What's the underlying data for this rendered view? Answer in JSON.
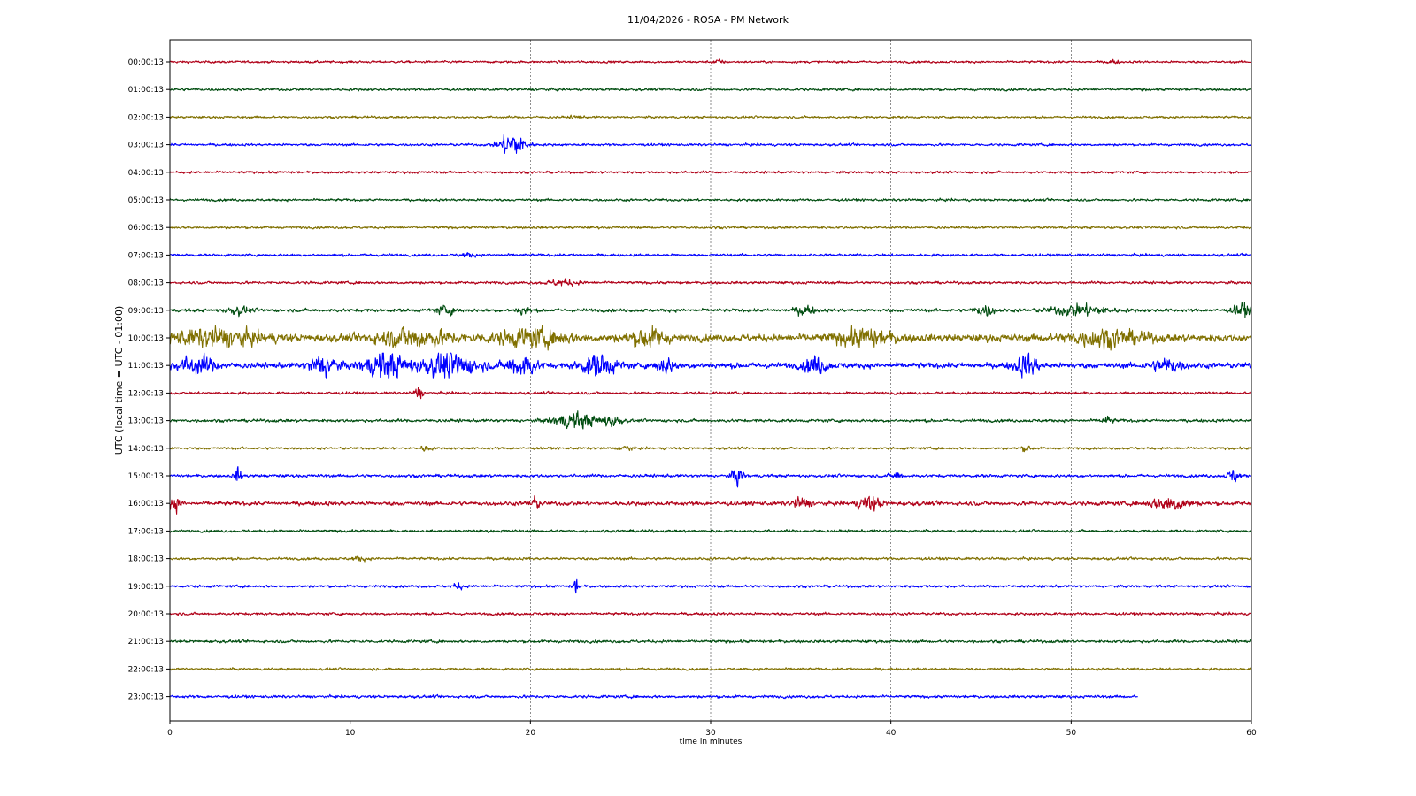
{
  "chart_data": {
    "type": "line",
    "title": "11/04/2026 - ROSA - PM Network",
    "xlabel": "time in minutes",
    "ylabel": "UTC (local time = UTC - 01:00)",
    "xlim": [
      0,
      60
    ],
    "x_ticks": [
      "0",
      "10",
      "20",
      "30",
      "40",
      "50",
      "60"
    ],
    "grid": "vertical dashed at x ticks",
    "color_cycle": [
      "#b00018",
      "#004d10",
      "#807000",
      "#0000ff"
    ],
    "series": [
      {
        "name": "00:00:13",
        "end": 60,
        "amp": 1.2,
        "events": [
          {
            "t": 30.4,
            "a": 2.2,
            "w": 0.3
          },
          {
            "t": 52.3,
            "a": 1.8,
            "w": 0.3
          }
        ]
      },
      {
        "name": "01:00:13",
        "end": 60,
        "amp": 1.3,
        "events": []
      },
      {
        "name": "02:00:13",
        "end": 60,
        "amp": 1.2,
        "events": [
          {
            "t": 22.5,
            "a": 1.6,
            "w": 0.3
          }
        ]
      },
      {
        "name": "03:00:13",
        "end": 60,
        "amp": 1.3,
        "events": [
          {
            "t": 19.0,
            "a": 14,
            "w": 0.7
          }
        ]
      },
      {
        "name": "04:00:13",
        "end": 60,
        "amp": 1.3,
        "events": []
      },
      {
        "name": "05:00:13",
        "end": 60,
        "amp": 1.3,
        "events": []
      },
      {
        "name": "06:00:13",
        "end": 60,
        "amp": 1.3,
        "events": []
      },
      {
        "name": "07:00:13",
        "end": 60,
        "amp": 1.4,
        "events": [
          {
            "t": 16.5,
            "a": 2,
            "w": 0.4
          }
        ]
      },
      {
        "name": "08:00:13",
        "end": 60,
        "amp": 1.4,
        "events": [
          {
            "t": 21.8,
            "a": 3,
            "w": 0.8
          }
        ]
      },
      {
        "name": "09:00:13",
        "end": 60,
        "amp": 1.8,
        "events": [
          {
            "t": 3.8,
            "a": 4,
            "w": 0.6
          },
          {
            "t": 15.3,
            "a": 4,
            "w": 0.6
          },
          {
            "t": 19.6,
            "a": 4,
            "w": 0.4
          },
          {
            "t": 35.2,
            "a": 5,
            "w": 0.5
          },
          {
            "t": 45.2,
            "a": 6,
            "w": 0.5
          },
          {
            "t": 50.5,
            "a": 6,
            "w": 1.5
          },
          {
            "t": 59.5,
            "a": 7,
            "w": 0.5
          }
        ]
      },
      {
        "name": "10:00:13",
        "end": 60,
        "amp": 4.0,
        "events": [
          {
            "t": 2.5,
            "a": 8,
            "w": 2.5
          },
          {
            "t": 13.5,
            "a": 9,
            "w": 2
          },
          {
            "t": 20,
            "a": 8,
            "w": 2
          },
          {
            "t": 26.5,
            "a": 9,
            "w": 1
          },
          {
            "t": 38.5,
            "a": 8,
            "w": 1.5
          },
          {
            "t": 52,
            "a": 8,
            "w": 2
          }
        ]
      },
      {
        "name": "11:00:13",
        "end": 60,
        "amp": 3.0,
        "events": [
          {
            "t": 1.5,
            "a": 9,
            "w": 1
          },
          {
            "t": 8.5,
            "a": 12,
            "w": 0.7
          },
          {
            "t": 12.0,
            "a": 14,
            "w": 1.2
          },
          {
            "t": 15.5,
            "a": 13,
            "w": 1.5
          },
          {
            "t": 19.5,
            "a": 11,
            "w": 0.8
          },
          {
            "t": 23.8,
            "a": 11,
            "w": 1
          },
          {
            "t": 27.5,
            "a": 8,
            "w": 0.5
          },
          {
            "t": 35.8,
            "a": 9,
            "w": 0.6
          },
          {
            "t": 47.5,
            "a": 12,
            "w": 0.6
          },
          {
            "t": 55.3,
            "a": 7,
            "w": 0.8
          }
        ]
      },
      {
        "name": "12:00:13",
        "end": 60,
        "amp": 1.4,
        "events": [
          {
            "t": 13.8,
            "a": 8,
            "w": 0.2
          }
        ]
      },
      {
        "name": "13:00:13",
        "end": 60,
        "amp": 1.6,
        "events": [
          {
            "t": 22.5,
            "a": 8,
            "w": 1.2
          },
          {
            "t": 24.5,
            "a": 5,
            "w": 0.6
          },
          {
            "t": 52,
            "a": 4,
            "w": 0.3
          }
        ]
      },
      {
        "name": "14:00:13",
        "end": 60,
        "amp": 1.3,
        "events": [
          {
            "t": 14.2,
            "a": 3,
            "w": 0.3
          },
          {
            "t": 25.3,
            "a": 3,
            "w": 0.3
          },
          {
            "t": 47.5,
            "a": 3,
            "w": 0.3
          }
        ]
      },
      {
        "name": "15:00:13",
        "end": 60,
        "amp": 1.6,
        "events": [
          {
            "t": 3.8,
            "a": 9,
            "w": 0.2
          },
          {
            "t": 31.5,
            "a": 10,
            "w": 0.3
          },
          {
            "t": 40.3,
            "a": 4,
            "w": 0.3
          },
          {
            "t": 59.0,
            "a": 7,
            "w": 0.3
          }
        ]
      },
      {
        "name": "16:00:13",
        "end": 60,
        "amp": 2.2,
        "events": [
          {
            "t": 0.3,
            "a": 7,
            "w": 0.3
          },
          {
            "t": 20.2,
            "a": 6,
            "w": 0.3
          },
          {
            "t": 35,
            "a": 5,
            "w": 0.5
          },
          {
            "t": 38.8,
            "a": 8,
            "w": 0.6
          },
          {
            "t": 55.5,
            "a": 7,
            "w": 1
          }
        ]
      },
      {
        "name": "17:00:13",
        "end": 60,
        "amp": 1.4,
        "events": []
      },
      {
        "name": "18:00:13",
        "end": 60,
        "amp": 1.4,
        "events": [
          {
            "t": 10.5,
            "a": 2,
            "w": 0.4
          }
        ]
      },
      {
        "name": "19:00:13",
        "end": 60,
        "amp": 1.4,
        "events": [
          {
            "t": 22.5,
            "a": 9,
            "w": 0.15
          },
          {
            "t": 16,
            "a": 3,
            "w": 0.3
          }
        ]
      },
      {
        "name": "20:00:13",
        "end": 60,
        "amp": 1.4,
        "events": []
      },
      {
        "name": "21:00:13",
        "end": 60,
        "amp": 1.5,
        "events": []
      },
      {
        "name": "22:00:13",
        "end": 60,
        "amp": 1.3,
        "events": []
      },
      {
        "name": "23:00:13",
        "end": 53.7,
        "amp": 1.5,
        "events": []
      }
    ]
  }
}
